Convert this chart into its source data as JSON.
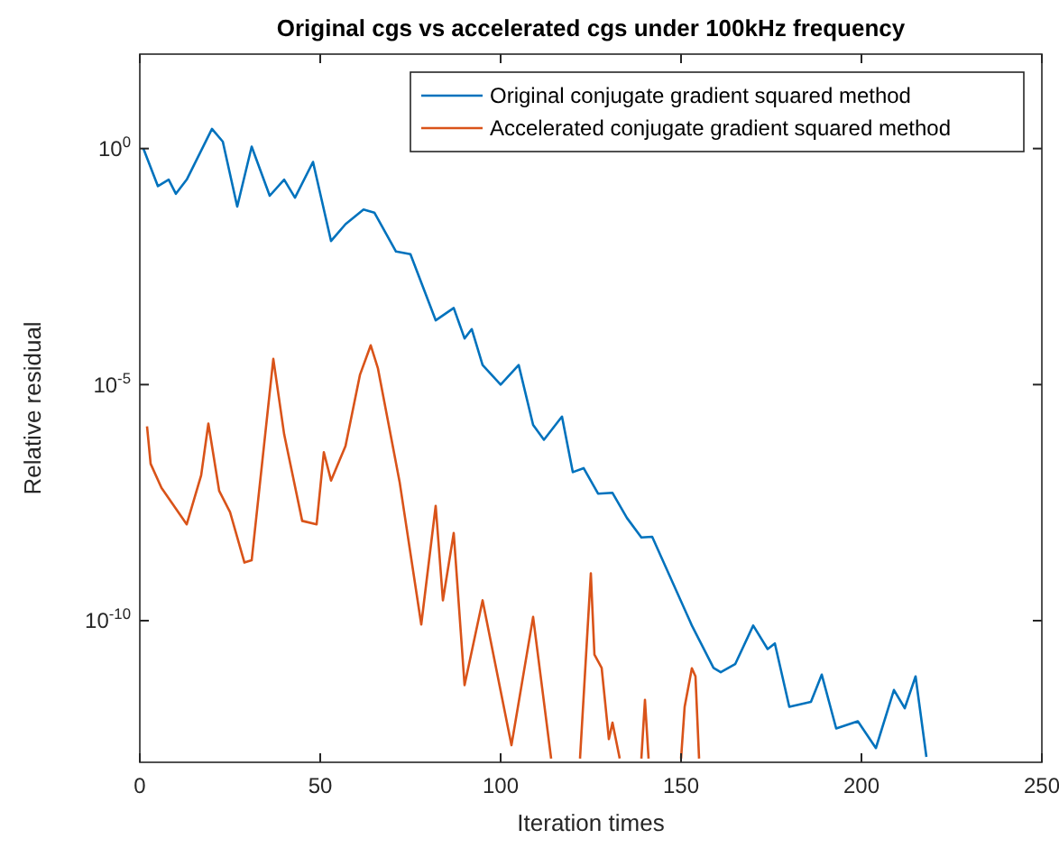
{
  "chart_data": {
    "type": "line",
    "title": "Original cgs vs accelerated cgs under 100kHz frequency",
    "xlabel": "Iteration times",
    "ylabel": "Relative residual",
    "log": "y",
    "grid": false,
    "legend": "top right",
    "line_style": "solid",
    "marker": "none",
    "xlim": [
      0,
      250
    ],
    "xticks": [
      0,
      50,
      100,
      150,
      200,
      250
    ],
    "ylim": [
      1e-13,
      100
    ],
    "yticks": [
      {
        "value": 1e-10,
        "label": "10$^{-10}$"
      },
      {
        "value": 1e-05,
        "label": "10$^{-5}$"
      },
      {
        "value": 1,
        "label": "10$^{0}$"
      }
    ],
    "series": [
      {
        "name": "Original conjugate gradient squared method",
        "color": "#0072bd",
        "x": [
          1,
          5,
          8,
          10,
          13,
          20,
          23,
          27,
          31,
          36,
          40,
          43,
          48,
          53,
          57,
          62,
          65,
          71,
          75,
          82,
          87,
          90,
          92,
          95,
          100,
          105,
          109,
          112,
          117,
          120,
          123,
          127,
          131,
          135,
          139,
          142,
          153,
          159,
          161,
          165,
          170,
          174,
          176,
          180,
          186,
          189,
          193,
          199,
          204,
          209,
          212,
          215,
          218
        ],
        "values": [
          1,
          0.16,
          0.22,
          0.11,
          0.22,
          2.6,
          1.4,
          0.059,
          1.1,
          0.1,
          0.22,
          0.091,
          0.52,
          0.011,
          0.025,
          0.051,
          0.044,
          0.0066,
          0.0058,
          0.00023,
          0.00042,
          9.5e-05,
          0.00015,
          2.6e-05,
          1e-05,
          2.6e-05,
          1.4e-06,
          6.8e-07,
          2.1e-06,
          1.4e-07,
          1.7e-07,
          4.9e-08,
          5.1e-08,
          1.5e-08,
          5.8e-09,
          6e-09,
          7.9e-11,
          1e-11,
          8.1e-12,
          1.2e-11,
          7.9e-11,
          2.5e-11,
          3.3e-11,
          1.5e-12,
          1.9e-12,
          7.2e-12,
          5.2e-13,
          7.4e-13,
          2e-13,
          3.4e-12,
          1.4e-12,
          6.6e-12,
          1.3e-13
        ]
      },
      {
        "name": "Accelerated conjugate gradient squared method",
        "color": "#d95319",
        "x": [
          2,
          3,
          6,
          13,
          17,
          19,
          22,
          25,
          29,
          31,
          37,
          40,
          45,
          49,
          51,
          53,
          57,
          61,
          64,
          66,
          72,
          78,
          82,
          84,
          87,
          90,
          95,
          103,
          109,
          114,
          118,
          122,
          125,
          126,
          128,
          130,
          131,
          133,
          136,
          139,
          140,
          141,
          145,
          150,
          151,
          153,
          154,
          155
        ],
        "values": [
          1.3e-06,
          2.1e-07,
          6.5e-08,
          1.1e-08,
          1.2e-07,
          1.5e-06,
          5.6e-08,
          2e-08,
          1.7e-09,
          1.9e-09,
          3.5e-05,
          8.9e-07,
          1.3e-08,
          1.1e-08,
          3.7e-07,
          9.3e-08,
          5e-07,
          1.6e-05,
          6.8e-05,
          2.2e-05,
          8.7e-08,
          8.3e-11,
          2.7e-08,
          2.7e-10,
          7.2e-09,
          4.3e-12,
          2.7e-10,
          2.3e-13,
          1.2e-10,
          1.2e-13,
          null,
          1.2e-13,
          1e-09,
          1.9e-11,
          1e-11,
          3.1e-13,
          6.9e-13,
          1.2e-13,
          null,
          1.2e-13,
          2.1e-12,
          1.2e-13,
          null,
          1.2e-13,
          1.5e-12,
          9.8e-12,
          6.6e-12,
          1.2e-13
        ]
      }
    ]
  }
}
